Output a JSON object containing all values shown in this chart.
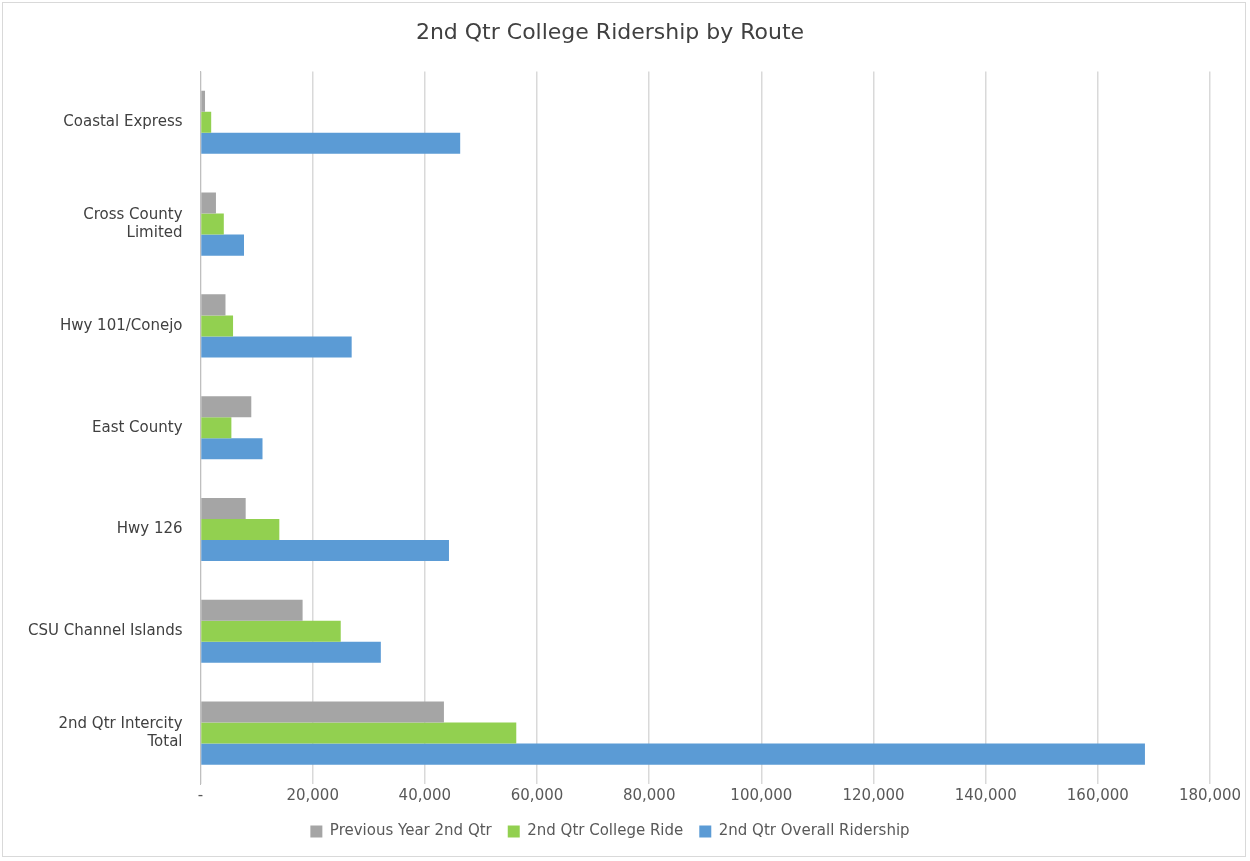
{
  "chart_data": {
    "type": "bar",
    "orientation": "horizontal",
    "title": "2nd Qtr College Ridership by Route",
    "categories": [
      "Coastal Express",
      "Cross County Limited",
      "Hwy 101/Conejo",
      "East County",
      "Hwy 126",
      "CSU Channel Islands",
      "2nd Qtr Intercity Total"
    ],
    "series": [
      {
        "name": "Previous Year 2nd Qtr",
        "color": "#a5a5a5",
        "values": [
          800,
          2750,
          4450,
          9050,
          8050,
          18200,
          43400
        ]
      },
      {
        "name": "2nd Qtr College Ride",
        "color": "#92d050",
        "values": [
          1900,
          4150,
          5800,
          5500,
          14050,
          25000,
          56300
        ]
      },
      {
        "name": "2nd Qtr Overall Ridership",
        "color": "#5b9bd5",
        "values": [
          46300,
          7750,
          26950,
          11050,
          44300,
          32150,
          168400
        ]
      }
    ],
    "xlim": [
      0,
      180000
    ],
    "xticks": [
      {
        "value": 0,
        "label": "-"
      },
      {
        "value": 20000,
        "label": "20,000"
      },
      {
        "value": 40000,
        "label": "40,000"
      },
      {
        "value": 60000,
        "label": "60,000"
      },
      {
        "value": 80000,
        "label": "80,000"
      },
      {
        "value": 100000,
        "label": "100,000"
      },
      {
        "value": 120000,
        "label": "120,000"
      },
      {
        "value": 140000,
        "label": "140,000"
      },
      {
        "value": 160000,
        "label": "160,000"
      },
      {
        "value": 180000,
        "label": "180,000"
      }
    ],
    "grid": "x",
    "legend": "bottom"
  }
}
